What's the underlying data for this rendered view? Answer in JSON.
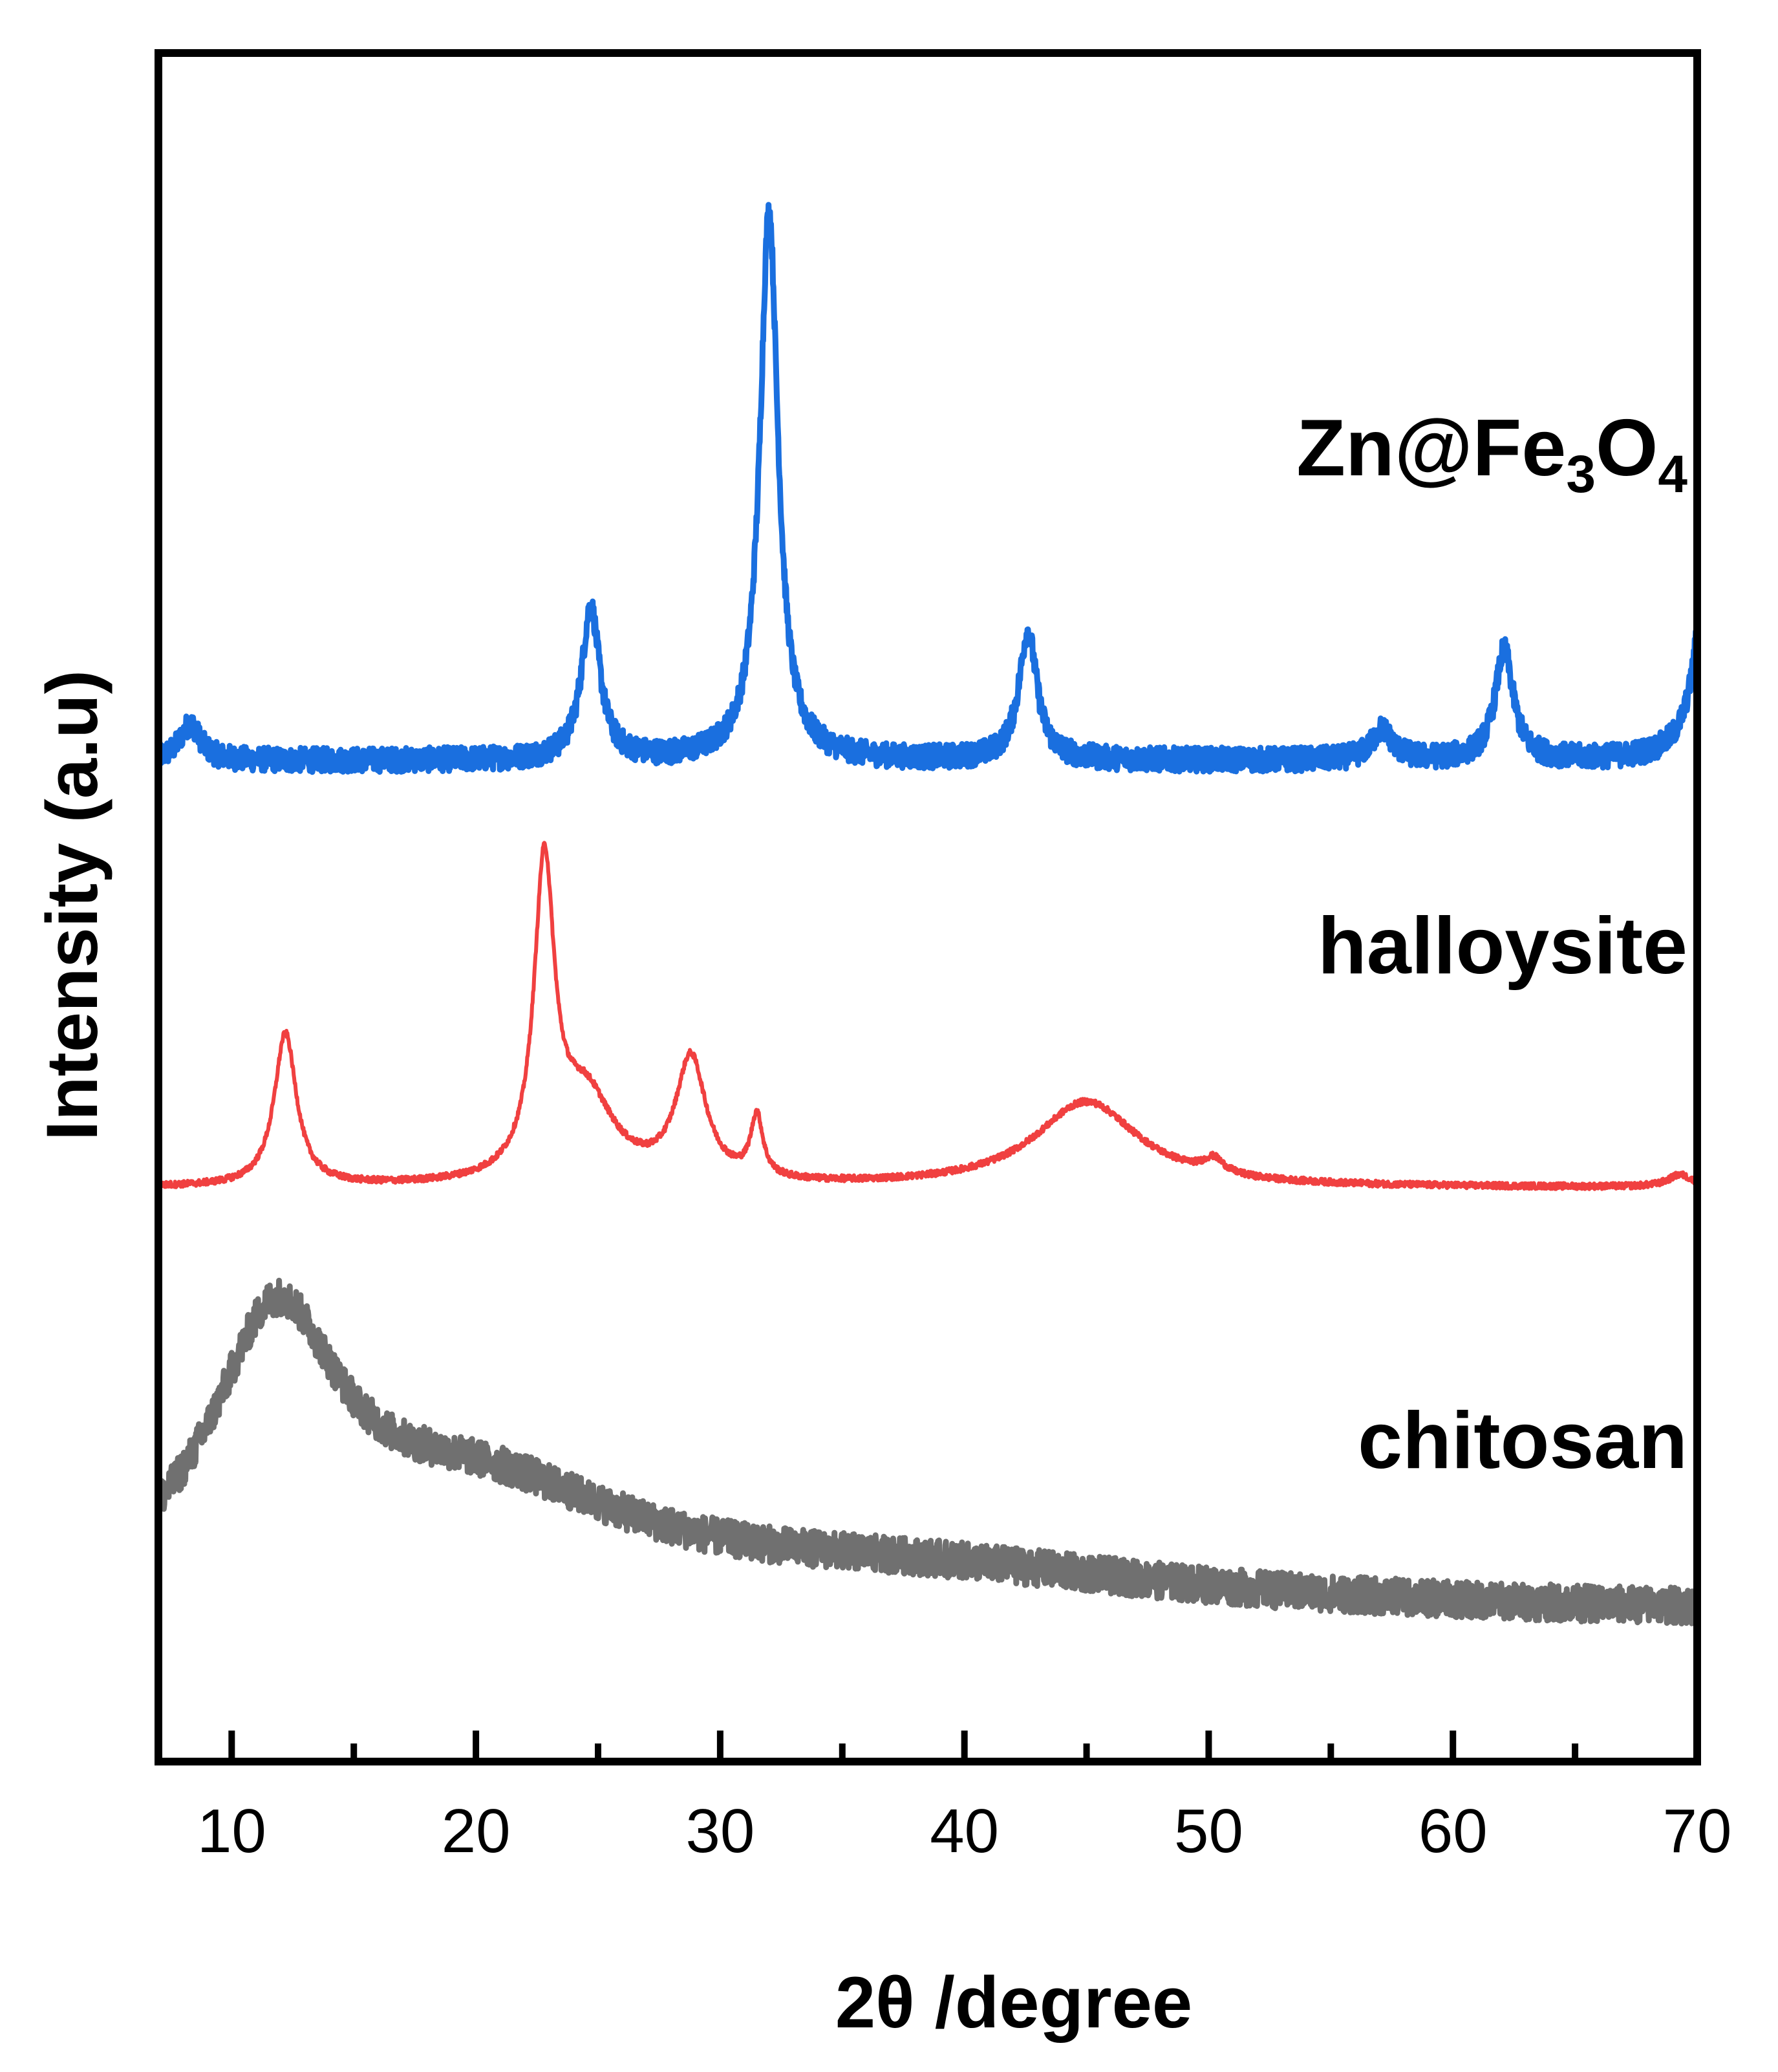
{
  "chart_data": {
    "type": "line",
    "title": "",
    "xlabel": "2θ /degree",
    "ylabel": "Intensity (a.u)",
    "xlim": [
      7,
      70
    ],
    "ylim": [
      0,
      140
    ],
    "x_ticks": [
      10,
      20,
      30,
      40,
      50,
      60,
      70
    ],
    "x_tick_labels": [
      "10",
      "20",
      "30",
      "40",
      "50",
      "60",
      "70"
    ],
    "x_minor_ticks": [
      15,
      25,
      35,
      45,
      55,
      65
    ],
    "y_ticks_shown": false,
    "grid": false,
    "legend": "none",
    "series": [
      {
        "name": "Zn@Fe3O4",
        "label_parts": [
          {
            "text": "Zn@Fe",
            "sub": false
          },
          {
            "text": "3",
            "sub": true
          },
          {
            "text": "O",
            "sub": false
          },
          {
            "text": "4",
            "sub": true
          }
        ],
        "color": "#1a6fdf",
        "noise": 1.0,
        "baseline": 82,
        "peaks": [
          {
            "x": 8.3,
            "height": 3.0,
            "width": 0.5
          },
          {
            "x": 24.7,
            "height": 12.5,
            "width": 0.45
          },
          {
            "x": 32.0,
            "height": 45.0,
            "width": 0.45
          },
          {
            "x": 42.6,
            "height": 10.5,
            "width": 0.45
          },
          {
            "x": 57.1,
            "height": 2.5,
            "width": 0.5
          },
          {
            "x": 62.1,
            "height": 9.0,
            "width": 0.45
          },
          {
            "x": 70.5,
            "height": 22.0,
            "width": 0.5
          }
        ]
      },
      {
        "name": "halloysite",
        "label_parts": [
          {
            "text": "halloysite",
            "sub": false
          }
        ],
        "color": "#f04040",
        "noise": 0.25,
        "baseline": 47,
        "peaks": [
          {
            "x": 12.2,
            "height": 12.5,
            "width": 0.55
          },
          {
            "x": 22.8,
            "height": 25.0,
            "width": 0.5
          },
          {
            "x": 24.5,
            "height": 7.0,
            "width": 1.4
          },
          {
            "x": 28.8,
            "height": 10.0,
            "width": 0.75
          },
          {
            "x": 31.5,
            "height": 5.0,
            "width": 0.3
          },
          {
            "x": 45.0,
            "height": 7.0,
            "width": 2.6
          },
          {
            "x": 50.2,
            "height": 1.2,
            "width": 0.5
          },
          {
            "x": 69.3,
            "height": 1.0,
            "width": 0.6
          }
        ]
      },
      {
        "name": "chitosan",
        "label_parts": [
          {
            "text": "chitosan",
            "sub": false
          }
        ],
        "color": "#707070",
        "noise": 1.5,
        "baseline": 12,
        "peaks": [
          {
            "x": 11.8,
            "height": 21.0,
            "width": 3.2
          },
          {
            "x": 20.0,
            "height": 9.0,
            "width": 8.0
          },
          {
            "x": 38.0,
            "height": 3.0,
            "width": 14.0
          }
        ]
      }
    ]
  }
}
